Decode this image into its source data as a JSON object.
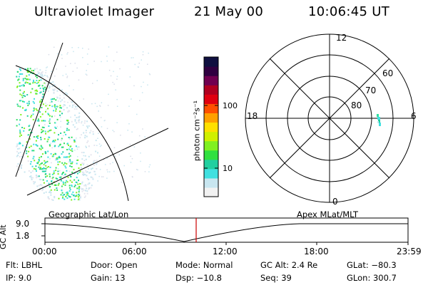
{
  "header": {
    "instrument": "Ultraviolet Imager",
    "date": "21 May 00",
    "time": "10:06:45 UT"
  },
  "colorbar": {
    "label": "photon cm⁻²s⁻¹",
    "ticks": [
      "100",
      "10"
    ],
    "colors": [
      "#f2f2f2",
      "#c8e6f0",
      "#40e0e0",
      "#20d0a0",
      "#30e040",
      "#80f020",
      "#d0f000",
      "#ffe000",
      "#ffa000",
      "#ff5000",
      "#e00010",
      "#b00020",
      "#700050",
      "#300040",
      "#101040"
    ]
  },
  "polar_plot": {
    "mlt_labels": [
      "12",
      "18",
      "6",
      "0"
    ],
    "lat_labels": [
      "60",
      "70",
      "80"
    ]
  },
  "geo_panel": {
    "label": "Geographic Lat/Lon"
  },
  "apex_panel": {
    "label": "Apex MLat/MLT"
  },
  "timeline": {
    "ylabel": "GC Alt",
    "yticks": [
      "9.0",
      "1.8"
    ],
    "xticks": [
      "00:00",
      "06:00",
      "12:00",
      "18:00",
      "23:59"
    ],
    "marker_time": "10:06"
  },
  "info": {
    "flt": "Flt: LBHL",
    "door": "Door: Open",
    "mode": "Mode: Normal",
    "gcalt": "GC Alt: 2.4 Re",
    "glat": "GLat: −80.3",
    "ip": "IP: 9.0",
    "gain": "Gain: 13",
    "dsp": "Dsp: −10.8",
    "seq": "Seq: 39",
    "glon": "GLon: 300.7"
  }
}
